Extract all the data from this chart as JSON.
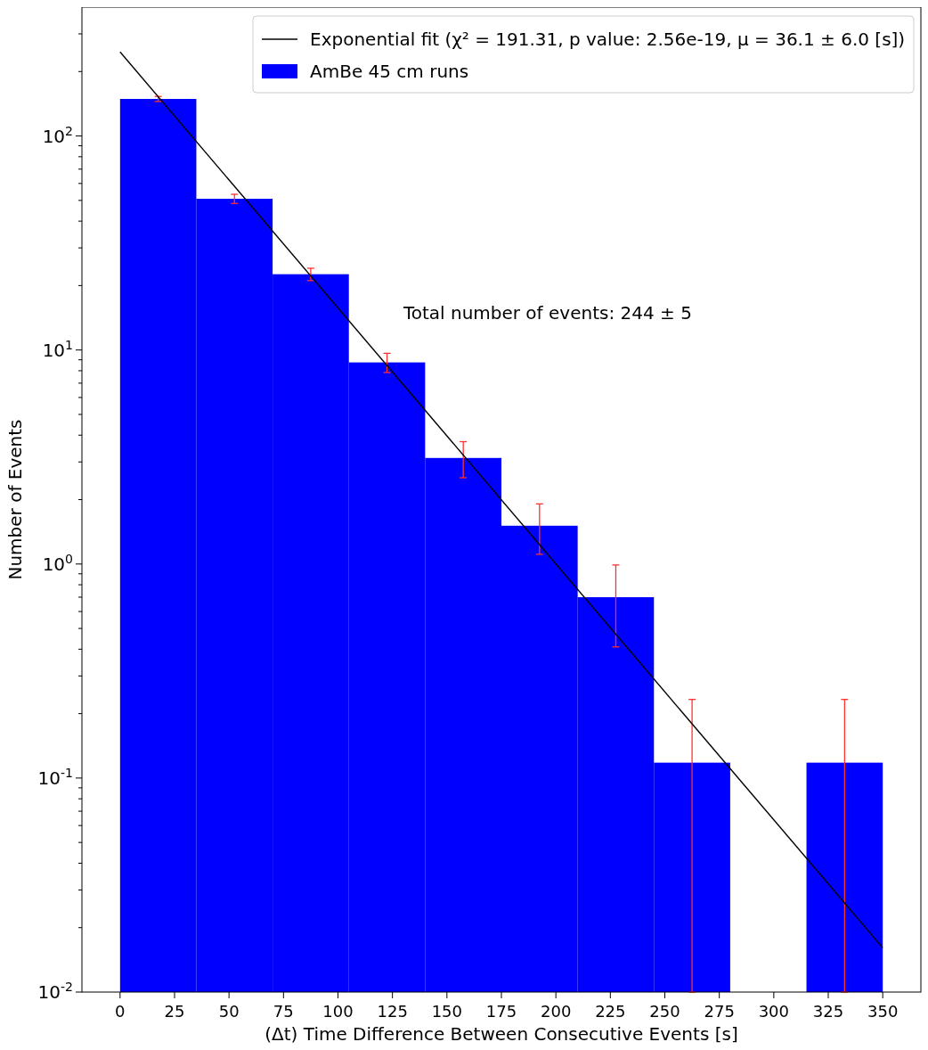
{
  "chart_data": {
    "type": "histogram",
    "xlabel": "(Δt) Time Difference Between Consecutive Events [s]",
    "ylabel": "Number of Events",
    "bins": [
      0,
      35,
      70,
      105,
      140,
      175,
      210,
      245,
      280,
      315,
      350
    ],
    "series": [
      {
        "name": "Exponential fit (χ² = 191.31, p value: 2.56e-19, μ = 36.1 ± 6.0 [s])",
        "type": "line",
        "color": "#000000",
        "x": [
          0,
          350
        ],
        "values": [
          247,
          0.0161
        ]
      },
      {
        "name": "AmBe 45 cm runs",
        "color": "#0000ff",
        "values": [
          149,
          50.9,
          22.6,
          8.75,
          3.13,
          1.51,
          0.7,
          0.118,
          null,
          0.118
        ],
        "errors": [
          4,
          2.5,
          1.5,
          0.9,
          0.6,
          0.4,
          0.29,
          [
            0.01,
            0.233
          ],
          null,
          [
            0.01,
            0.233
          ]
        ]
      }
    ],
    "log": "y",
    "xlim": [
      -17.5,
      367.5
    ],
    "ylim": [
      0.01,
      400
    ],
    "xticks": [
      0,
      25,
      50,
      75,
      100,
      125,
      150,
      175,
      200,
      225,
      250,
      275,
      300,
      325,
      350
    ],
    "yticks": [
      {
        "value": 0.01,
        "label": "10$^{-2}$"
      },
      {
        "value": 0.02,
        "label": null
      },
      {
        "value": 0.03,
        "label": null
      },
      {
        "value": 0.04,
        "label": null
      },
      {
        "value": 0.05,
        "label": null
      },
      {
        "value": 0.06,
        "label": null
      },
      {
        "value": 0.07,
        "label": null
      },
      {
        "value": 0.08,
        "label": null
      },
      {
        "value": 0.09,
        "label": null
      },
      {
        "value": 0.1,
        "label": "10$^{-1}$"
      },
      {
        "value": 0.2,
        "label": null
      },
      {
        "value": 0.3,
        "label": null
      },
      {
        "value": 0.4,
        "label": null
      },
      {
        "value": 0.5,
        "label": null
      },
      {
        "value": 0.6,
        "label": null
      },
      {
        "value": 0.7,
        "label": null
      },
      {
        "value": 0.8,
        "label": null
      },
      {
        "value": 0.9,
        "label": null
      },
      {
        "value": 1,
        "label": "10$^{0}$"
      },
      {
        "value": 2,
        "label": null
      },
      {
        "value": 3,
        "label": null
      },
      {
        "value": 4,
        "label": null
      },
      {
        "value": 5,
        "label": null
      },
      {
        "value": 6,
        "label": null
      },
      {
        "value": 7,
        "label": null
      },
      {
        "value": 8,
        "label": null
      },
      {
        "value": 9,
        "label": null
      },
      {
        "value": 10,
        "label": "10$^{1}$"
      },
      {
        "value": 20,
        "label": null
      },
      {
        "value": 30,
        "label": null
      },
      {
        "value": 40,
        "label": null
      },
      {
        "value": 50,
        "label": null
      },
      {
        "value": 60,
        "label": null
      },
      {
        "value": 70,
        "label": null
      },
      {
        "value": 80,
        "label": null
      },
      {
        "value": 90,
        "label": null
      },
      {
        "value": 100,
        "label": "10$^{2}$"
      },
      {
        "value": 200,
        "label": null
      },
      {
        "value": 300,
        "label": null
      }
    ],
    "annotations": [
      "Total number of events: 244 ± 5"
    ],
    "legend": "top right",
    "grid": false
  }
}
